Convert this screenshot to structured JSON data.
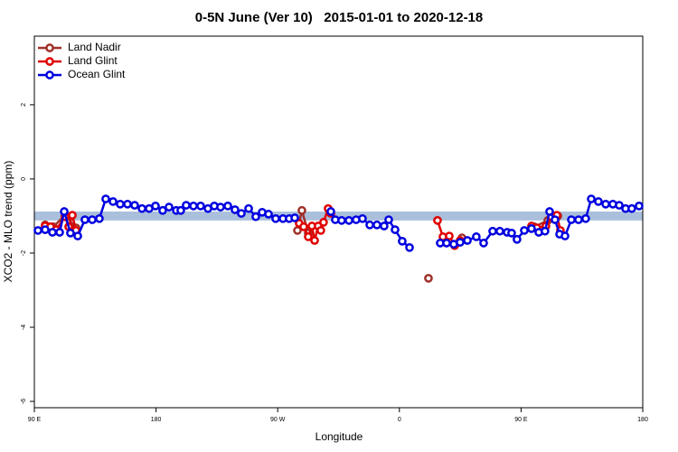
{
  "chart_data": {
    "type": "line",
    "title": "0-5N June (Ver 10)   2015-01-01 to 2020-12-18",
    "xlabel": "Longitude",
    "ylabel": "XCO2 - MLO trend (ppm)",
    "xlim": [
      90,
      540
    ],
    "xticks": [
      {
        "value": 90,
        "label": "90 E"
      },
      {
        "value": 180,
        "label": "180"
      },
      {
        "value": 270,
        "label": "90 W"
      },
      {
        "value": 360,
        "label": "0"
      },
      {
        "value": 450,
        "label": "90 E"
      },
      {
        "value": 540,
        "label": "180"
      }
    ],
    "ylim": [
      -6.17,
      3.85
    ],
    "yticks": [
      -6,
      -4,
      -2,
      0,
      2
    ],
    "band_ylim": [
      -1.12,
      -0.88
    ],
    "band_color": "#a9bfdc",
    "legend": "top-left",
    "series": [
      {
        "name": "Land Nadir",
        "color": "#a0302a",
        "x": [
          98.0,
          104.0,
          112.7,
          120.8,
          null,
          284.6,
          287.9,
          292.6,
          null,
          381.5,
          null,
          406.3,
          null,
          459.7,
          469.8,
          477.2
        ],
        "values": [
          -1.24,
          -1.29,
          -0.98,
          -1.32,
          null,
          -1.39,
          -0.85,
          -1.46,
          null,
          -2.68,
          null,
          -1.59,
          null,
          -1.29,
          -1.12,
          -1.0
        ]
      },
      {
        "name": "Land Glint",
        "color": "#e00000",
        "x": [
          98.0,
          102.0,
          106.1,
          112.7,
          115.4,
          118.1,
          120.8,
          null,
          285.9,
          289.2,
          292.6,
          295.3,
          297.3,
          299.9,
          301.9,
          303.9,
          307.3,
          309.3,
          null,
          388.2,
          392.2,
          396.9,
          400.9,
          404.9,
          null,
          457.7,
          461.7,
          468.4,
          472.4,
          476.5,
          479.1
        ],
        "values": [
          -1.27,
          -1.29,
          -1.37,
          -1.02,
          -1.29,
          -0.98,
          -1.39,
          null,
          -1.2,
          -1.29,
          -1.56,
          -1.27,
          -1.66,
          -1.27,
          -1.39,
          -1.17,
          -0.8,
          -0.93,
          null,
          -1.12,
          -1.56,
          -1.54,
          -1.8,
          -1.66,
          null,
          -1.27,
          -1.32,
          -1.27,
          -1.02,
          -0.98,
          -1.39
        ]
      },
      {
        "name": "Ocean Glint",
        "color": "#0000e0",
        "x": [
          92.7,
          98.0,
          103.4,
          108.7,
          112.1,
          116.7,
          122.1,
          127.4,
          132.8,
          138.1,
          142.8,
          148.2,
          153.5,
          158.9,
          164.2,
          169.6,
          174.9,
          179.6,
          184.9,
          189.6,
          195.0,
          198.3,
          202.3,
          207.7,
          213.0,
          218.4,
          223.1,
          227.7,
          233.1,
          238.4,
          243.1,
          248.5,
          253.8,
          258.5,
          263.2,
          268.5,
          273.9,
          278.5,
          282.6,
          null,
          309.3,
          312.6,
          317.3,
          322.7,
          328.0,
          332.7,
          338.1,
          343.4,
          348.7,
          352.1,
          356.8,
          362.1,
          367.5,
          null,
          390.2,
          394.9,
          400.2,
          404.9,
          410.3,
          416.9,
          422.3,
          429.0,
          434.3,
          439.7,
          443.0,
          447.0,
          452.4,
          457.7,
          463.1,
          467.7,
          471.1,
          475.1,
          478.5,
          482.5,
          487.2,
          492.5,
          497.8,
          501.9,
          507.2,
          512.6,
          517.9,
          522.6,
          527.3,
          531.9,
          537.3
        ],
        "values": [
          -1.39,
          -1.37,
          -1.44,
          -1.44,
          -0.88,
          -1.46,
          -1.54,
          -1.1,
          -1.1,
          -1.07,
          -0.54,
          -0.61,
          -0.68,
          -0.68,
          -0.71,
          -0.8,
          -0.8,
          -0.73,
          -0.85,
          -0.76,
          -0.85,
          -0.85,
          -0.71,
          -0.73,
          -0.73,
          -0.8,
          -0.73,
          -0.76,
          -0.73,
          -0.83,
          -0.93,
          -0.8,
          -1.02,
          -0.9,
          -0.95,
          -1.07,
          -1.07,
          -1.07,
          -1.05,
          null,
          -0.88,
          -1.1,
          -1.12,
          -1.12,
          -1.1,
          -1.07,
          -1.24,
          -1.24,
          -1.27,
          -1.1,
          -1.37,
          -1.68,
          -1.85,
          null,
          -1.73,
          -1.73,
          -1.76,
          -1.71,
          -1.66,
          -1.56,
          -1.73,
          -1.41,
          -1.41,
          -1.44,
          -1.46,
          -1.63,
          -1.39,
          -1.34,
          -1.44,
          -1.41,
          -0.88,
          -1.1,
          -1.49,
          -1.54,
          -1.1,
          -1.1,
          -1.07,
          -0.54,
          -0.61,
          -0.68,
          -0.68,
          -0.71,
          -0.8,
          -0.8,
          -0.73
        ]
      }
    ]
  }
}
